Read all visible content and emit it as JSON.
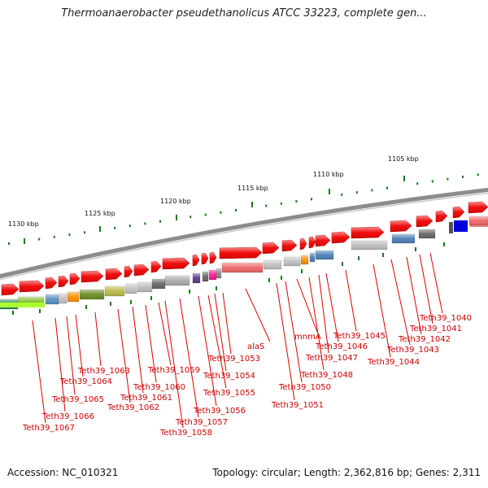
{
  "title": "Thermoanaerobacter pseudethanolicus ATCC 33223, complete gen...",
  "footer": {
    "accession": "Accession: NC_010321",
    "stats": "Topology: circular; Length: 2,362,816 bp; Genes: 2,311"
  },
  "ruler_labels": [
    "1130 kbp",
    "1125 kbp",
    "1120 kbp",
    "1115 kbp",
    "1110 kbp",
    "1105 kbp"
  ],
  "gene_labels": [
    "Teth39_1067",
    "Teth39_1066",
    "Teth39_1065",
    "Teth39_1064",
    "Teth39_1063",
    "Teth39_1062",
    "Teth39_1061",
    "Teth39_1060",
    "Teth39_1059",
    "Teth39_1058",
    "Teth39_1057",
    "Teth39_1056",
    "Teth39_1055",
    "Teth39_1054",
    "Teth39_1053",
    "alaS",
    "Teth39_1051",
    "Teth39_1050",
    "mnmA",
    "Teth39_1048",
    "Teth39_1047",
    "Teth39_1046",
    "Teth39_1045",
    "Teth39_1044",
    "Teth39_1043",
    "Teth39_1042",
    "Teth39_1041",
    "Teth39_1040"
  ],
  "colors": {
    "forward_gene": "#ee0000",
    "backbone": "#8a8a8a",
    "label": "#cc0000",
    "tick": "#1a7a1a"
  }
}
